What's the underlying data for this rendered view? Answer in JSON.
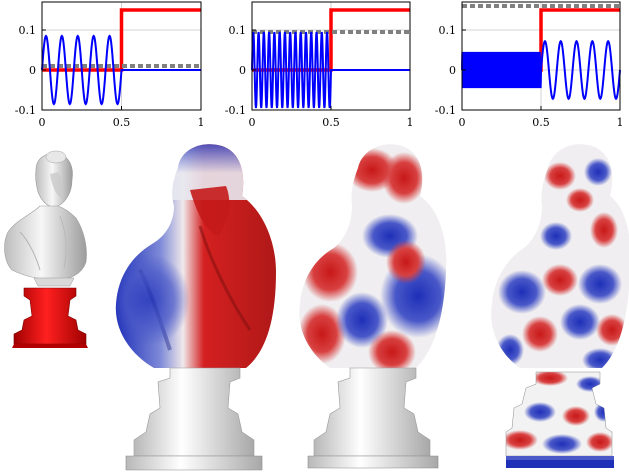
{
  "chart_data": [
    {
      "type": "line",
      "xlim": [
        0,
        1
      ],
      "ylim": [
        -0.1,
        0.17
      ],
      "xticks": [
        "0",
        "0.5",
        "1"
      ],
      "yticks": [
        "-0.1",
        "0",
        "0.1"
      ],
      "grid": true,
      "series": [
        {
          "role": "indicator",
          "color": "#ff0000",
          "style": "solid",
          "x": [
            0,
            0.5,
            0.5,
            1
          ],
          "y": [
            0,
            0,
            0.15,
            0.15
          ]
        },
        {
          "role": "reference",
          "color": "#808080",
          "style": "dashed",
          "x": [
            0,
            1
          ],
          "y": [
            0.01,
            0.01
          ]
        },
        {
          "role": "function",
          "color": "#0000ff",
          "style": "solid",
          "oscillation": {
            "x_start": 0,
            "x_end": 0.5,
            "amplitude": 0.085,
            "cycles": 5,
            "offset": 0
          },
          "flat": {
            "x_start": 0.5,
            "x_end": 1,
            "value": 0
          }
        }
      ]
    },
    {
      "type": "line",
      "xlim": [
        0,
        1
      ],
      "ylim": [
        -0.1,
        0.17
      ],
      "xticks": [
        "0",
        "0.5",
        "1"
      ],
      "yticks": [
        "-0.1",
        "0",
        "0.1"
      ],
      "grid": true,
      "series": [
        {
          "role": "indicator",
          "color": "#ff0000",
          "style": "solid",
          "x": [
            0,
            0.5,
            0.5,
            1
          ],
          "y": [
            0,
            0,
            0.15,
            0.15
          ]
        },
        {
          "role": "reference",
          "color": "#808080",
          "style": "dashed",
          "x": [
            0,
            1
          ],
          "y": [
            0.095,
            0.095
          ]
        },
        {
          "role": "function",
          "color": "#0000ff",
          "style": "solid",
          "oscillation": {
            "x_start": 0,
            "x_end": 0.5,
            "amplitude": 0.095,
            "cycles": 15,
            "offset": 0
          },
          "flat": {
            "x_start": 0.5,
            "x_end": 1,
            "value": 0
          }
        }
      ]
    },
    {
      "type": "line",
      "xlim": [
        0,
        1
      ],
      "ylim": [
        -0.1,
        0.17
      ],
      "xticks": [
        "0",
        "0.5",
        "1"
      ],
      "yticks": [
        "-0.1",
        "0",
        "0.1"
      ],
      "grid": true,
      "series": [
        {
          "role": "indicator",
          "color": "#ff0000",
          "style": "solid",
          "x": [
            0,
            0.5,
            0.5,
            1
          ],
          "y": [
            0,
            0,
            0.15,
            0.15
          ]
        },
        {
          "role": "reference",
          "color": "#808080",
          "style": "dashed",
          "x": [
            0,
            1
          ],
          "y": [
            0.16,
            0.16
          ]
        },
        {
          "role": "function",
          "color": "#0000ff",
          "style": "solid",
          "oscillation": {
            "x_start": 0,
            "x_end": 0.5,
            "amplitude": 0.045,
            "cycles": 45,
            "offset": 0
          },
          "oscillation2": {
            "x_start": 0.5,
            "x_end": 1,
            "amplitude": 0.072,
            "cycles": 5,
            "offset": 0
          }
        }
      ]
    }
  ],
  "figure": {
    "colors": {
      "positive": "#d42020",
      "negative": "#1e2fb8",
      "neutral": "#f2f2f2",
      "pedestal_red": "#e00000"
    },
    "models": [
      {
        "kind": "indicator",
        "pattern": "pedestal-red"
      },
      {
        "kind": "eigenfunction",
        "pattern": "low-frequency"
      },
      {
        "kind": "eigenfunction",
        "pattern": "medium-frequency"
      },
      {
        "kind": "eigenfunction",
        "pattern": "high-frequency"
      }
    ]
  }
}
